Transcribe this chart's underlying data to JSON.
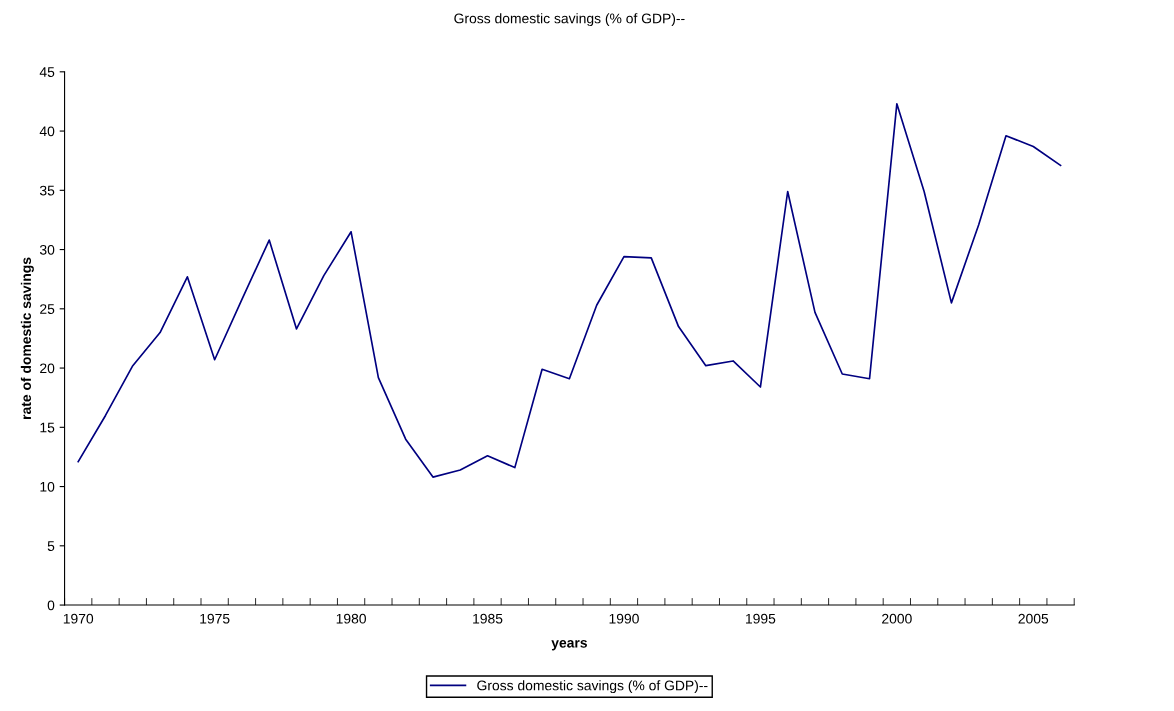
{
  "chart_data": {
    "type": "line",
    "title": "Gross domestic savings (% of GDP)--",
    "xlabel": "years",
    "ylabel": "rate of domestic savings",
    "categories": [
      "1970",
      null,
      null,
      null,
      null,
      "1975",
      null,
      null,
      null,
      null,
      "1980",
      null,
      null,
      null,
      null,
      "1985",
      null,
      null,
      null,
      null,
      "1990",
      null,
      null,
      null,
      null,
      "1995",
      null,
      null,
      null,
      null,
      "2000",
      null,
      null,
      null,
      null,
      "2005",
      null
    ],
    "series": [
      {
        "name": "Gross domestic savings (% of GDP)--",
        "color": "#000080",
        "values": [
          12.1,
          16.0,
          20.2,
          23.0,
          27.7,
          20.7,
          25.8,
          30.8,
          23.3,
          27.8,
          31.5,
          19.2,
          14.0,
          10.8,
          11.4,
          12.6,
          11.6,
          19.9,
          19.1,
          25.3,
          29.4,
          29.3,
          23.5,
          20.2,
          20.6,
          18.4,
          34.9,
          24.7,
          19.5,
          19.1,
          42.3,
          34.9,
          25.5,
          32.1,
          39.6,
          38.7,
          37.1
        ]
      }
    ],
    "ylim": [
      0,
      45
    ],
    "yticks": [
      0,
      5,
      10,
      15,
      20,
      25,
      30,
      35,
      40,
      45
    ],
    "grid": false,
    "legend": "bottom",
    "marker": "none",
    "line_style": "solid"
  }
}
